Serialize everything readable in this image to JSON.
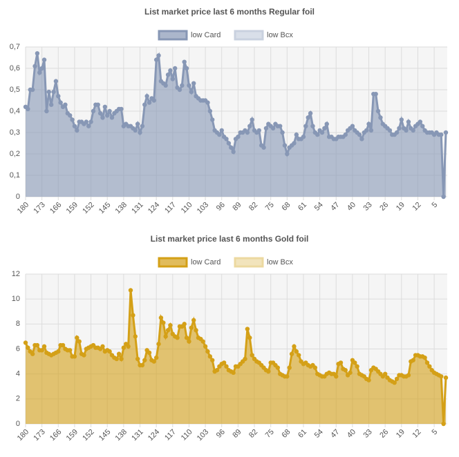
{
  "chart_data": [
    {
      "type": "line",
      "title": "List market price last 6 months Regular foil",
      "categories": [
        "180",
        null,
        null,
        null,
        null,
        null,
        null,
        "173",
        null,
        null,
        null,
        null,
        null,
        null,
        "166",
        null,
        null,
        null,
        null,
        null,
        null,
        "159",
        null,
        null,
        null,
        null,
        null,
        null,
        "152",
        null,
        null,
        null,
        null,
        null,
        null,
        "145",
        null,
        null,
        null,
        null,
        null,
        null,
        "138",
        null,
        null,
        null,
        null,
        null,
        null,
        "131",
        null,
        null,
        null,
        null,
        null,
        null,
        "124",
        null,
        null,
        null,
        null,
        null,
        null,
        "117",
        null,
        null,
        null,
        null,
        null,
        null,
        "110",
        null,
        null,
        null,
        null,
        null,
        null,
        "103",
        null,
        null,
        null,
        null,
        null,
        null,
        "96",
        null,
        null,
        null,
        null,
        null,
        null,
        "89",
        null,
        null,
        null,
        null,
        null,
        null,
        "82",
        null,
        null,
        null,
        null,
        null,
        null,
        "75",
        null,
        null,
        null,
        null,
        null,
        null,
        "68",
        null,
        null,
        null,
        null,
        null,
        null,
        "61",
        null,
        null,
        null,
        null,
        null,
        null,
        "54",
        null,
        null,
        null,
        null,
        null,
        null,
        "47",
        null,
        null,
        null,
        null,
        null,
        null,
        "40",
        null,
        null,
        null,
        null,
        null,
        null,
        "33",
        null,
        null,
        null,
        null,
        null,
        null,
        "26",
        null,
        null,
        null,
        null,
        null,
        null,
        "19",
        null,
        null,
        null,
        null,
        null,
        null,
        "12",
        null,
        null,
        null,
        null,
        null,
        null,
        "5",
        null,
        null,
        null,
        null,
        null
      ],
      "ylim": [
        0,
        0.7
      ],
      "yticks": [
        0,
        {
          "value": 0.1,
          "label": "0,1"
        },
        {
          "value": 0.2,
          "label": "0,2"
        },
        {
          "value": 0.3,
          "label": "0,3"
        },
        {
          "value": 0.4,
          "label": "0,4"
        },
        {
          "value": 0.5,
          "label": "0,5"
        },
        {
          "value": 0.6,
          "label": "0,6"
        },
        {
          "value": 0.7,
          "label": "0,7"
        }
      ],
      "grid": true,
      "legend": "top",
      "series": [
        {
          "name": "low Card",
          "color": "#8797b5",
          "values": [
            0.42,
            0.41,
            0.5,
            0.5,
            0.61,
            0.67,
            0.58,
            0.6,
            0.64,
            0.4,
            0.49,
            0.43,
            0.49,
            0.54,
            0.47,
            0.44,
            0.42,
            0.43,
            0.39,
            0.38,
            0.36,
            0.33,
            0.31,
            0.35,
            0.35,
            0.34,
            0.35,
            0.33,
            0.35,
            0.4,
            0.43,
            0.43,
            0.39,
            0.37,
            0.42,
            0.38,
            0.4,
            0.37,
            0.39,
            0.4,
            0.41,
            0.41,
            0.33,
            0.34,
            0.33,
            0.33,
            0.32,
            0.31,
            0.34,
            0.3,
            0.33,
            0.43,
            0.47,
            0.44,
            0.46,
            0.45,
            0.64,
            0.66,
            0.54,
            0.53,
            0.52,
            0.57,
            0.59,
            0.55,
            0.6,
            0.51,
            0.5,
            0.52,
            0.63,
            0.6,
            0.52,
            0.49,
            0.53,
            0.47,
            0.46,
            0.45,
            0.45,
            0.45,
            0.44,
            0.4,
            0.36,
            0.31,
            0.3,
            0.29,
            0.31,
            0.28,
            0.27,
            0.25,
            0.23,
            0.21,
            0.27,
            0.28,
            0.3,
            0.3,
            0.31,
            0.3,
            0.33,
            0.36,
            0.31,
            0.3,
            0.31,
            0.24,
            0.23,
            0.32,
            0.34,
            0.33,
            0.32,
            0.34,
            0.33,
            0.33,
            0.3,
            0.24,
            0.2,
            0.23,
            0.24,
            0.25,
            0.29,
            0.27,
            0.27,
            0.28,
            0.33,
            0.37,
            0.39,
            0.33,
            0.3,
            0.29,
            0.31,
            0.3,
            0.32,
            0.34,
            0.28,
            0.28,
            0.27,
            0.27,
            0.28,
            0.28,
            0.28,
            0.29,
            0.31,
            0.32,
            0.33,
            0.31,
            0.3,
            0.29,
            0.27,
            0.3,
            0.31,
            0.34,
            0.31,
            0.48,
            0.48,
            0.4,
            0.37,
            0.34,
            0.33,
            0.32,
            0.31,
            0.29,
            0.29,
            0.3,
            0.32,
            0.36,
            0.32,
            0.31,
            0.35,
            0.32,
            0.31,
            0.33,
            0.34,
            0.35,
            0.33,
            0.31,
            0.3,
            0.3,
            0.3,
            0.29,
            0.3,
            0.29,
            0.29,
            0,
            0.3
          ]
        },
        {
          "name": "low Bcx",
          "color": "#c9d1df",
          "values": [
            null,
            null,
            null,
            null,
            null,
            null,
            null,
            null,
            null,
            null,
            null,
            null,
            null,
            null,
            null,
            null,
            null,
            null,
            null,
            null,
            null,
            null,
            null,
            null,
            null,
            null,
            null,
            null,
            null,
            null,
            null,
            null,
            null,
            null,
            null,
            null,
            null,
            null,
            null,
            null,
            null,
            null,
            null,
            null,
            null,
            null,
            null,
            null,
            null,
            null,
            null,
            null,
            null,
            null,
            null,
            null,
            null,
            null,
            null,
            null,
            null,
            null,
            null,
            null,
            null,
            null,
            null,
            null,
            null,
            null,
            null,
            null,
            null,
            null,
            null,
            null,
            null,
            null,
            null,
            null,
            null,
            null,
            null,
            null,
            null,
            null,
            null,
            null,
            null,
            null,
            null,
            null,
            null,
            null,
            null,
            null,
            null,
            null,
            null,
            null,
            null,
            null,
            null,
            null,
            null,
            null,
            null,
            null,
            null,
            null,
            null,
            null,
            null,
            null,
            null,
            null,
            null,
            null,
            null,
            null,
            null,
            null,
            null,
            null,
            null,
            null,
            null,
            null,
            null,
            null,
            null,
            null,
            null,
            null,
            null,
            null,
            null,
            null,
            null,
            null,
            null,
            null,
            null,
            null,
            null,
            null,
            null,
            null,
            null,
            null,
            null,
            null,
            null,
            null,
            null,
            null,
            null,
            null,
            null,
            null,
            null,
            null,
            null,
            null,
            null,
            null,
            null,
            null,
            null,
            null,
            null,
            null,
            null,
            null,
            null,
            null,
            null,
            null,
            null,
            null,
            null
          ]
        }
      ]
    },
    {
      "type": "line",
      "title": "List market price last 6 months Gold foil",
      "categories": [
        "180",
        null,
        null,
        null,
        null,
        null,
        null,
        "173",
        null,
        null,
        null,
        null,
        null,
        null,
        "166",
        null,
        null,
        null,
        null,
        null,
        null,
        "159",
        null,
        null,
        null,
        null,
        null,
        null,
        "152",
        null,
        null,
        null,
        null,
        null,
        null,
        "145",
        null,
        null,
        null,
        null,
        null,
        null,
        "138",
        null,
        null,
        null,
        null,
        null,
        null,
        "131",
        null,
        null,
        null,
        null,
        null,
        null,
        "124",
        null,
        null,
        null,
        null,
        null,
        null,
        "117",
        null,
        null,
        null,
        null,
        null,
        null,
        "110",
        null,
        null,
        null,
        null,
        null,
        null,
        "103",
        null,
        null,
        null,
        null,
        null,
        null,
        "96",
        null,
        null,
        null,
        null,
        null,
        null,
        "89",
        null,
        null,
        null,
        null,
        null,
        null,
        "82",
        null,
        null,
        null,
        null,
        null,
        null,
        "75",
        null,
        null,
        null,
        null,
        null,
        null,
        "68",
        null,
        null,
        null,
        null,
        null,
        null,
        "61",
        null,
        null,
        null,
        null,
        null,
        null,
        "54",
        null,
        null,
        null,
        null,
        null,
        null,
        "47",
        null,
        null,
        null,
        null,
        null,
        null,
        "40",
        null,
        null,
        null,
        null,
        null,
        null,
        "33",
        null,
        null,
        null,
        null,
        null,
        null,
        "26",
        null,
        null,
        null,
        null,
        null,
        null,
        "19",
        null,
        null,
        null,
        null,
        null,
        null,
        "12",
        null,
        null,
        null,
        null,
        null,
        null,
        "5",
        null,
        null,
        null,
        null,
        null
      ],
      "ylim": [
        0,
        12
      ],
      "yticks": [
        0,
        2,
        4,
        6,
        8,
        10,
        12
      ],
      "grid": true,
      "legend": "top",
      "series": [
        {
          "name": "low Card",
          "color": "#d4a017",
          "values": [
            6.5,
            6.1,
            5.8,
            5.6,
            6.3,
            6.3,
            5.9,
            5.9,
            6.2,
            5.7,
            5.6,
            5.5,
            5.6,
            5.7,
            5.8,
            6.3,
            6.3,
            6,
            5.9,
            5.9,
            5.4,
            5.4,
            6.9,
            6.6,
            5.6,
            5.5,
            6,
            6.1,
            6.2,
            6.3,
            6.1,
            6.1,
            6,
            6.2,
            5.8,
            5.9,
            5.8,
            5.5,
            5.3,
            5.2,
            5.6,
            5.2,
            6.1,
            6.4,
            6.2,
            10.7,
            8.7,
            7,
            5.2,
            4.7,
            4.7,
            5.1,
            5.9,
            5.7,
            5.1,
            5,
            5.3,
            6.4,
            8.5,
            8.1,
            7,
            7.5,
            7.9,
            7.2,
            7,
            6.9,
            7.8,
            7.8,
            8,
            6.9,
            6.6,
            7.7,
            8.3,
            7.5,
            6.9,
            6.8,
            6.6,
            6.2,
            5.8,
            5.4,
            5.1,
            4.2,
            4.3,
            4.6,
            4.8,
            4.9,
            4.6,
            4.3,
            4.2,
            4.1,
            4.6,
            4.6,
            4.8,
            5,
            5.2,
            7.6,
            6.9,
            5.5,
            5.2,
            5,
            4.9,
            4.7,
            4.5,
            4.3,
            4.2,
            4.9,
            4.9,
            4.7,
            4.5,
            4,
            3.9,
            3.8,
            3.8,
            4.5,
            5.6,
            6.2,
            5.8,
            5.5,
            5,
            4.8,
            4.9,
            4.7,
            4.6,
            4.7,
            4.5,
            4,
            3.9,
            3.8,
            3.8,
            4,
            4.1,
            4,
            4,
            3.8,
            4.8,
            4.9,
            4.4,
            4.3,
            3.9,
            4.1,
            5.1,
            4.9,
            4.6,
            4,
            3.9,
            3.8,
            3.6,
            3.5,
            4.3,
            4.5,
            4.4,
            4.2,
            4,
            3.8,
            4,
            3.7,
            3.5,
            3.4,
            3.3,
            3.6,
            3.9,
            3.9,
            3.8,
            3.8,
            3.9,
            5,
            5.1,
            5.5,
            5.5,
            5.4,
            5.4,
            5.3,
            4.9,
            4.6,
            4.3,
            4.1,
            4,
            3.9,
            3.8,
            0,
            3.7
          ]
        },
        {
          "name": "low Bcx",
          "color": "#ecd9a0",
          "values": [
            null,
            null,
            null,
            null,
            null,
            null,
            null,
            null,
            null,
            null,
            null,
            null,
            null,
            null,
            null,
            null,
            null,
            null,
            null,
            null,
            null,
            null,
            null,
            null,
            null,
            null,
            null,
            null,
            null,
            null,
            null,
            null,
            null,
            null,
            null,
            null,
            null,
            null,
            null,
            null,
            null,
            null,
            null,
            null,
            null,
            null,
            null,
            null,
            null,
            null,
            null,
            null,
            null,
            null,
            null,
            null,
            null,
            null,
            null,
            null,
            null,
            null,
            null,
            null,
            null,
            null,
            null,
            null,
            null,
            null,
            null,
            null,
            null,
            null,
            null,
            null,
            null,
            null,
            null,
            null,
            null,
            null,
            null,
            null,
            null,
            null,
            null,
            null,
            null,
            null,
            null,
            null,
            null,
            null,
            null,
            null,
            null,
            null,
            null,
            null,
            null,
            null,
            null,
            null,
            null,
            null,
            null,
            null,
            null,
            null,
            null,
            null,
            null,
            null,
            null,
            null,
            null,
            null,
            null,
            null,
            null,
            null,
            null,
            null,
            null,
            null,
            null,
            null,
            null,
            null,
            null,
            null,
            null,
            null,
            null,
            null,
            null,
            null,
            null,
            null,
            null,
            null,
            null,
            null,
            null,
            null,
            null,
            null,
            null,
            null,
            null,
            null,
            null,
            null,
            null,
            null,
            null,
            null,
            null,
            null,
            null,
            null,
            null,
            null,
            null,
            null,
            null,
            null,
            null,
            null,
            null,
            null,
            null,
            null,
            null,
            null,
            null,
            null,
            null,
            null,
            null
          ]
        }
      ]
    }
  ]
}
